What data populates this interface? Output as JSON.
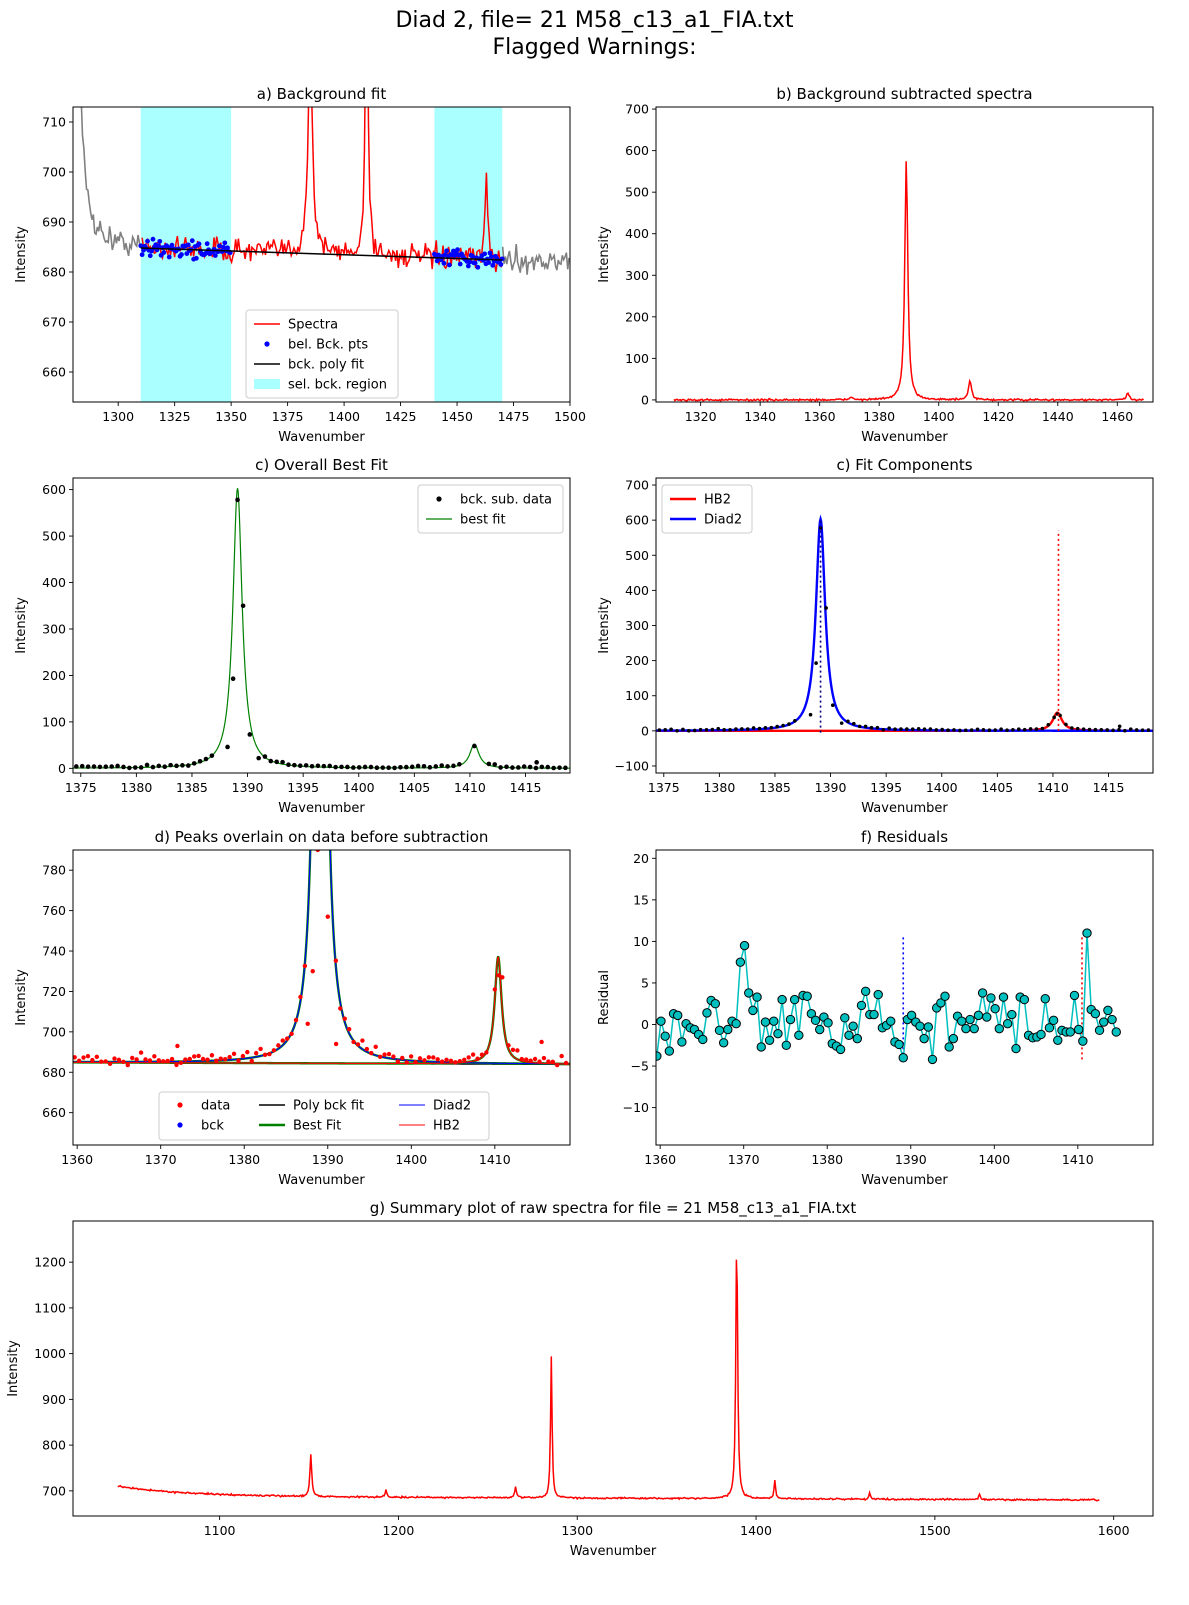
{
  "figure": {
    "title_line1": "Diad 2, file= 21 M58_c13_a1_FIA.txt",
    "title_line2": "Flagged Warnings:"
  },
  "colors": {
    "spectra": "#ff0000",
    "background_data": "#808080",
    "bck_points": "#0000ff",
    "poly_fit": "#000000",
    "region": "#aaffff",
    "best_fit": "#008000",
    "diad2": "#0000ff",
    "hb2": "#ff0000",
    "residual": "#00bfbf"
  },
  "chart_data": [
    {
      "id": "a",
      "type": "line",
      "title": "a) Background fit",
      "xlabel": "Wavenumber",
      "ylabel": "Intensity",
      "xlim": [
        1280,
        1500
      ],
      "ylim": [
        654,
        713
      ],
      "xticks": [
        1300,
        1325,
        1350,
        1375,
        1400,
        1425,
        1450,
        1475,
        1500
      ],
      "yticks": [
        660,
        670,
        680,
        690,
        700,
        710
      ],
      "grid": false,
      "legend_position": "lower-center",
      "regions": [
        [
          1310,
          1350
        ],
        [
          1440,
          1470
        ]
      ],
      "legend": [
        "Spectra",
        "bel. Bck. pts",
        "bck. poly fit",
        "sel. bck. region"
      ],
      "poly_fit": {
        "x": [
          1310,
          1470
        ],
        "y": [
          684.8,
          682.4
        ]
      },
      "spectra_peaks": [
        {
          "x": 1385,
          "height": 40,
          "width": 1.2
        },
        {
          "x": 1410,
          "height": 60,
          "width": 0.7
        },
        {
          "x": 1463,
          "height": 18,
          "width": 0.6
        },
        {
          "x": 1280,
          "height": 120,
          "width": 2.0
        }
      ],
      "series": [
        {
          "name": "Spectra",
          "mean_start": 684.8,
          "mean_end": 682.4,
          "noise": 2.3
        },
        {
          "name": "bel. Bck. pts",
          "noise": 1.6
        }
      ]
    },
    {
      "id": "b",
      "type": "line",
      "title": "b) Background subtracted spectra",
      "xlabel": "Wavenumber",
      "ylabel": "Intensity",
      "xlim": [
        1305,
        1472
      ],
      "ylim": [
        -5,
        705
      ],
      "xticks": [
        1320,
        1340,
        1360,
        1380,
        1400,
        1420,
        1440,
        1460
      ],
      "yticks": [
        0,
        100,
        200,
        300,
        400,
        500,
        600,
        700
      ],
      "grid": false,
      "x_range": [
        1311,
        1469
      ],
      "peaks": [
        {
          "x": 1389.1,
          "height": 578,
          "width": 0.6
        },
        {
          "x": 1410.5,
          "height": 45,
          "width": 0.6
        },
        {
          "x": 1463.5,
          "height": 17,
          "width": 0.5
        },
        {
          "x": 1370.5,
          "height": 8,
          "width": 0.5
        }
      ]
    },
    {
      "id": "c1",
      "type": "scatter",
      "title": "c) Overall Best Fit",
      "xlabel": "Wavenumber",
      "ylabel": "Intensity",
      "xlim": [
        1374.3,
        1419.0
      ],
      "ylim": [
        -10,
        625
      ],
      "xticks": [
        1375,
        1380,
        1385,
        1390,
        1395,
        1400,
        1405,
        1410,
        1415
      ],
      "yticks": [
        0,
        100,
        200,
        300,
        400,
        500,
        600
      ],
      "grid": false,
      "legend_position": "top-right",
      "legend": [
        "bck. sub. data",
        "best fit"
      ],
      "peaks": [
        {
          "center": 1389.1,
          "amp": 603,
          "hwhm": 0.5
        },
        {
          "center": 1410.4,
          "amp": 52,
          "hwhm": 0.5
        }
      ],
      "data_points": [
        {
          "x": 1388.7,
          "y": 193
        },
        {
          "x": 1389.1,
          "y": 578
        },
        {
          "x": 1389.6,
          "y": 350
        },
        {
          "x": 1390.2,
          "y": 73
        },
        {
          "x": 1388.2,
          "y": 46
        },
        {
          "x": 1391.0,
          "y": 22
        },
        {
          "x": 1410.4,
          "y": 48
        },
        {
          "x": 1416.0,
          "y": 13
        }
      ]
    },
    {
      "id": "c2",
      "type": "line",
      "title": "c) Fit Components",
      "xlabel": "Wavenumber",
      "ylabel": "Intensity",
      "xlim": [
        1374.3,
        1419.0
      ],
      "ylim": [
        -120,
        720
      ],
      "xticks": [
        1375,
        1380,
        1385,
        1390,
        1395,
        1400,
        1405,
        1410,
        1415
      ],
      "yticks": [
        -100,
        0,
        100,
        200,
        300,
        400,
        500,
        600,
        700
      ],
      "grid": false,
      "legend_position": "top-left",
      "legend": [
        "HB2",
        "Diad2"
      ],
      "vlines": [
        {
          "x": 1389.1,
          "y0": -5,
          "y1": 598,
          "color": "#000080"
        },
        {
          "x": 1410.5,
          "y0": 0,
          "y1": 570,
          "color": "#ff0000"
        }
      ]
    },
    {
      "id": "d",
      "type": "scatter",
      "title": "d) Peaks overlain on data before subtraction",
      "xlabel": "Wavenumber",
      "ylabel": "Intensity",
      "xlim": [
        1359.5,
        1419.0
      ],
      "ylim": [
        644,
        790
      ],
      "xticks": [
        1360,
        1370,
        1380,
        1390,
        1400,
        1410
      ],
      "yticks": [
        660,
        680,
        700,
        720,
        740,
        760,
        780
      ],
      "grid": false,
      "legend_position": "lower-center",
      "legend": [
        "data",
        "bck",
        "Poly bck fit",
        "Best Fit",
        "Diad2",
        "HB2"
      ],
      "baseline": [
        684.9,
        683.9
      ],
      "peaks": [
        {
          "center": 1389.1,
          "amp": 603,
          "hwhm": 0.55
        },
        {
          "center": 1410.4,
          "amp": 53,
          "hwhm": 0.5
        }
      ],
      "data_points": [
        {
          "x": 1388.2,
          "y": 730
        },
        {
          "x": 1390.0,
          "y": 757
        },
        {
          "x": 1388.8,
          "y": 790
        },
        {
          "x": 1410.0,
          "y": 721
        },
        {
          "x": 1410.5,
          "y": 728
        },
        {
          "x": 1410.9,
          "y": 727
        },
        {
          "x": 1387.6,
          "y": 704
        },
        {
          "x": 1391.0,
          "y": 694
        },
        {
          "x": 1372.0,
          "y": 693
        },
        {
          "x": 1415.6,
          "y": 695
        }
      ]
    },
    {
      "id": "f",
      "type": "line",
      "title": "f) Residuals",
      "xlabel": "Wavenumber",
      "ylabel": "Residual",
      "xlim": [
        1359.5,
        1419.0
      ],
      "ylim": [
        -14.5,
        21
      ],
      "xticks": [
        1360,
        1370,
        1380,
        1390,
        1400,
        1410
      ],
      "yticks": [
        -10,
        -5,
        0,
        5,
        10,
        15,
        20
      ],
      "grid": false,
      "vlines": [
        {
          "x": 1389.1,
          "y0": -4.2,
          "y1": 10.7,
          "color": "#0000ff"
        },
        {
          "x": 1410.5,
          "y0": -4.2,
          "y1": 10.7,
          "color": "#ff0000"
        }
      ],
      "x_start": 1359.6,
      "x_step": 0.5,
      "residuals": [
        -3.8,
        0.4,
        -1.4,
        -3.2,
        1.3,
        1.1,
        -2.1,
        0.1,
        -0.4,
        -0.6,
        -1.2,
        -1.8,
        1.4,
        2.9,
        2.5,
        -0.7,
        -2.2,
        -0.6,
        0.4,
        0.1,
        7.5,
        9.5,
        3.8,
        1.7,
        3.3,
        -2.7,
        0.3,
        -1.9,
        0.4,
        -1.1,
        3.0,
        -2.5,
        0.6,
        3.0,
        -1.3,
        3.5,
        3.4,
        1.3,
        0.5,
        -0.6,
        0.9,
        0.2,
        -2.3,
        -2.6,
        -3.0,
        0.8,
        -1.3,
        -0.2,
        -1.7,
        2.3,
        4.0,
        1.2,
        1.2,
        3.6,
        -0.4,
        -0.1,
        0.4,
        -2.1,
        -2.4,
        -4.0,
        0.6,
        1.1,
        0.3,
        -0.2,
        -1.7,
        -0.3,
        -4.2,
        2.0,
        2.6,
        3.4,
        -2.7,
        -1.7,
        1.0,
        0.4,
        -0.5,
        0.6,
        -0.5,
        1.1,
        3.8,
        0.9,
        3.2,
        1.9,
        -0.5,
        3.3,
        0.1,
        1.2,
        -2.9,
        3.3,
        3.0,
        -1.3,
        -1.6,
        -1.5,
        -1.2,
        3.1,
        -0.4,
        0.5,
        -1.9,
        -0.7,
        -0.9,
        -0.9,
        3.5,
        -0.6,
        -2.0,
        11.0,
        1.8,
        1.3,
        -0.7,
        0.3,
        1.7,
        0.6,
        -0.9
      ]
    },
    {
      "id": "g",
      "type": "line",
      "title": "g) Summary plot of raw spectra for file = 21 M58_c13_a1_FIA.txt",
      "xlabel": "Wavenumber",
      "ylabel": "Intensity",
      "xlim": [
        1018,
        1622
      ],
      "ylim": [
        645,
        1290
      ],
      "xticks": [
        1100,
        1200,
        1300,
        1400,
        1500,
        1600
      ],
      "yticks": [
        700,
        800,
        900,
        1000,
        1100,
        1200
      ],
      "grid": false,
      "x_range": [
        1043,
        1592
      ],
      "baseline_start": 702,
      "baseline_end": 680,
      "peaks": [
        {
          "x": 1151,
          "height": 93,
          "width": 0.6
        },
        {
          "x": 1193,
          "height": 18,
          "width": 0.5
        },
        {
          "x": 1265.5,
          "height": 24,
          "width": 0.6
        },
        {
          "x": 1285.5,
          "height": 310,
          "width": 0.5
        },
        {
          "x": 1389.2,
          "height": 580,
          "width": 0.6
        },
        {
          "x": 1410.5,
          "height": 42,
          "width": 0.5
        },
        {
          "x": 1463.5,
          "height": 14,
          "width": 0.5
        },
        {
          "x": 1525,
          "height": 12,
          "width": 0.5
        }
      ]
    }
  ]
}
